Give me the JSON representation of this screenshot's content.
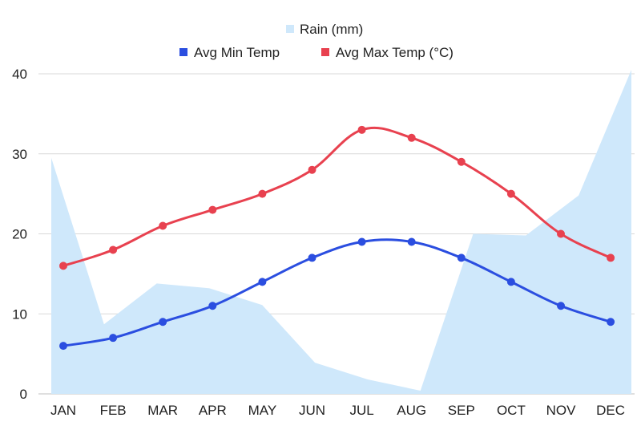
{
  "chart_data": {
    "type": "line",
    "title": "",
    "xlabel": "",
    "ylabel": "",
    "ylim": [
      0,
      40
    ],
    "yticks": [
      0,
      10,
      20,
      30,
      40
    ],
    "grid": true,
    "legend_position": "top-center",
    "categories": [
      "JAN",
      "FEB",
      "MAR",
      "APR",
      "MAY",
      "JUN",
      "JUL",
      "AUG",
      "SEP",
      "OCT",
      "NOV",
      "DEC"
    ],
    "series": [
      {
        "name": "Rain (mm)",
        "kind": "area",
        "color": "#cfe8fb",
        "values": [
          29.5,
          8.7,
          13.8,
          13.2,
          11.1,
          3.9,
          1.8,
          0.4,
          20.0,
          19.8,
          24.8,
          40.5
        ]
      },
      {
        "name": "Avg Min Temp",
        "kind": "line",
        "color": "#2b4ee0",
        "values": [
          6,
          7,
          9,
          11,
          14,
          17,
          19,
          19,
          17,
          14,
          11,
          9
        ]
      },
      {
        "name": "Avg Max Temp (°C)",
        "kind": "line",
        "color": "#e8414f",
        "values": [
          16,
          18,
          21,
          23,
          25,
          28,
          33,
          32,
          29,
          25,
          20,
          17
        ]
      }
    ]
  }
}
